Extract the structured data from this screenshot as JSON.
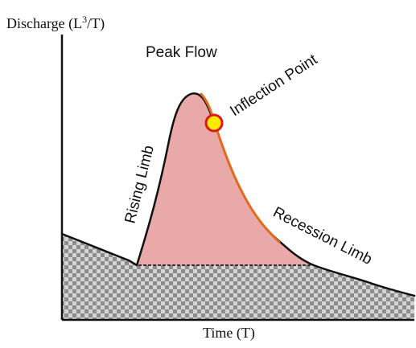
{
  "axes": {
    "y_label_prefix": "Discharge (L",
    "y_label_superscript": "3",
    "y_label_suffix": "/T)",
    "x_label": "Time (T)"
  },
  "labels": {
    "peak_flow": "Peak Flow",
    "inflection_point": "Inflection Point",
    "rising_limb": "Rising Limb",
    "recession_limb": "Recession Limb"
  },
  "colors": {
    "hydrograph_fill": "#E8A9A8",
    "baseflow_pattern": "#8C8C8C",
    "recession_highlight": "#E46A1C",
    "inflection_marker_fill": "#FFEB00",
    "inflection_marker_stroke": "#E0161B",
    "outline": "#111111"
  }
}
